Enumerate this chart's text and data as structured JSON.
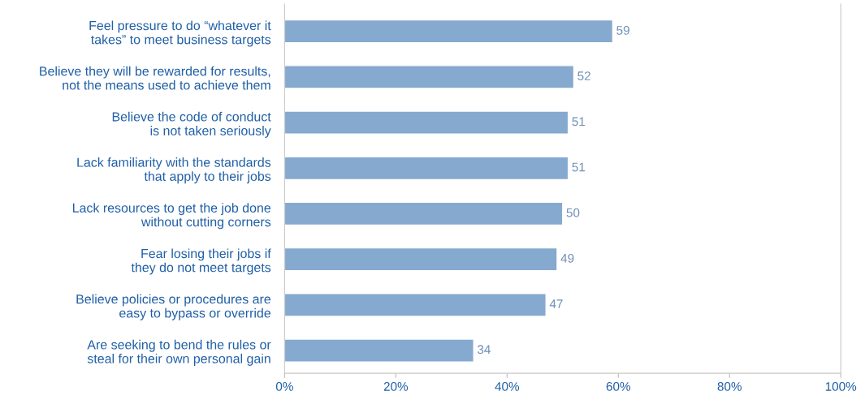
{
  "chart_data": {
    "type": "bar",
    "orientation": "horizontal",
    "categories": [
      "Feel pressure to do “whatever it\ntakes” to meet business targets",
      "Believe they will be rewarded for results,\nnot the means used to achieve them",
      "Believe the code of conduct\nis not taken seriously",
      "Lack familiarity with the standards\nthat apply to their jobs",
      "Lack resources to get the job done\nwithout cutting corners",
      "Fear losing their jobs if\nthey do not meet targets",
      "Believe policies or procedures are\neasy to bypass or override",
      "Are seeking to bend the rules or\nsteal for their own personal gain"
    ],
    "values": [
      59,
      52,
      51,
      51,
      50,
      49,
      47,
      34
    ],
    "color": "#85a9cf",
    "data_labels": true,
    "xlim": [
      0,
      100
    ],
    "xticks": [
      {
        "value": 0,
        "label": "0%"
      },
      {
        "value": 20,
        "label": "20%"
      },
      {
        "value": 40,
        "label": "40%"
      },
      {
        "value": 60,
        "label": "60%"
      },
      {
        "value": 80,
        "label": "80%"
      },
      {
        "value": 100,
        "label": "100%"
      }
    ],
    "grid": false,
    "legend": false
  }
}
